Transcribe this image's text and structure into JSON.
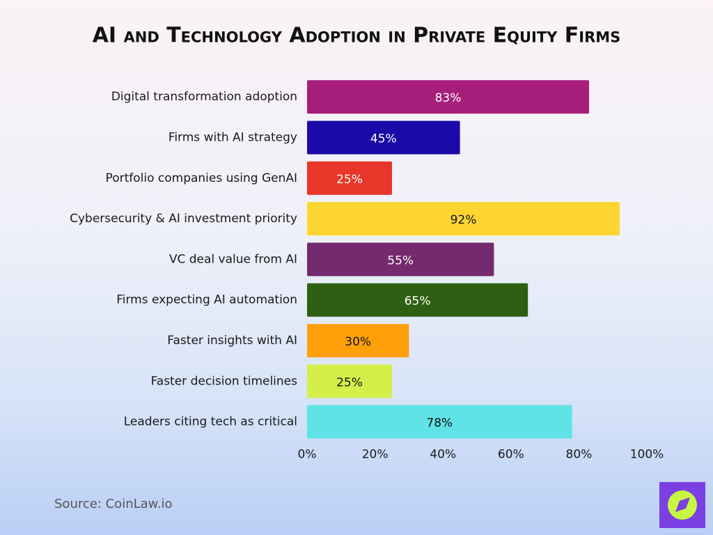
{
  "chart_data": {
    "type": "hbar",
    "title": "AI and Technology Adoption in Private Equity Firms",
    "categories": [
      "Digital transformation adoption",
      "Firms with AI strategy",
      "Portfolio companies using GenAI",
      "Cybersecurity & AI investment priority",
      "VC deal value from AI",
      "Firms expecting AI automation",
      "Faster insights with AI",
      "Faster decision timelines",
      "Leaders citing tech as critical"
    ],
    "values": [
      83,
      45,
      25,
      92,
      55,
      65,
      30,
      25,
      78
    ],
    "value_labels": [
      "83%",
      "45%",
      "25%",
      "92%",
      "55%",
      "65%",
      "30%",
      "25%",
      "78%"
    ],
    "colors": [
      "#a61e7a",
      "#1a0aa8",
      "#e8362a",
      "#fdd533",
      "#732a6e",
      "#2e5f12",
      "#ff9f0a",
      "#d4ef4a",
      "#5fe3e6"
    ],
    "xlim": [
      0,
      100
    ],
    "xticks": [
      {
        "value": 0,
        "label": "0%"
      },
      {
        "value": 20,
        "label": "20%"
      },
      {
        "value": 40,
        "label": "40%"
      },
      {
        "value": 60,
        "label": "60%"
      },
      {
        "value": 80,
        "label": "80%"
      },
      {
        "value": 100,
        "label": "100%"
      }
    ],
    "grid": false,
    "source": "Source: CoinLaw.io"
  }
}
